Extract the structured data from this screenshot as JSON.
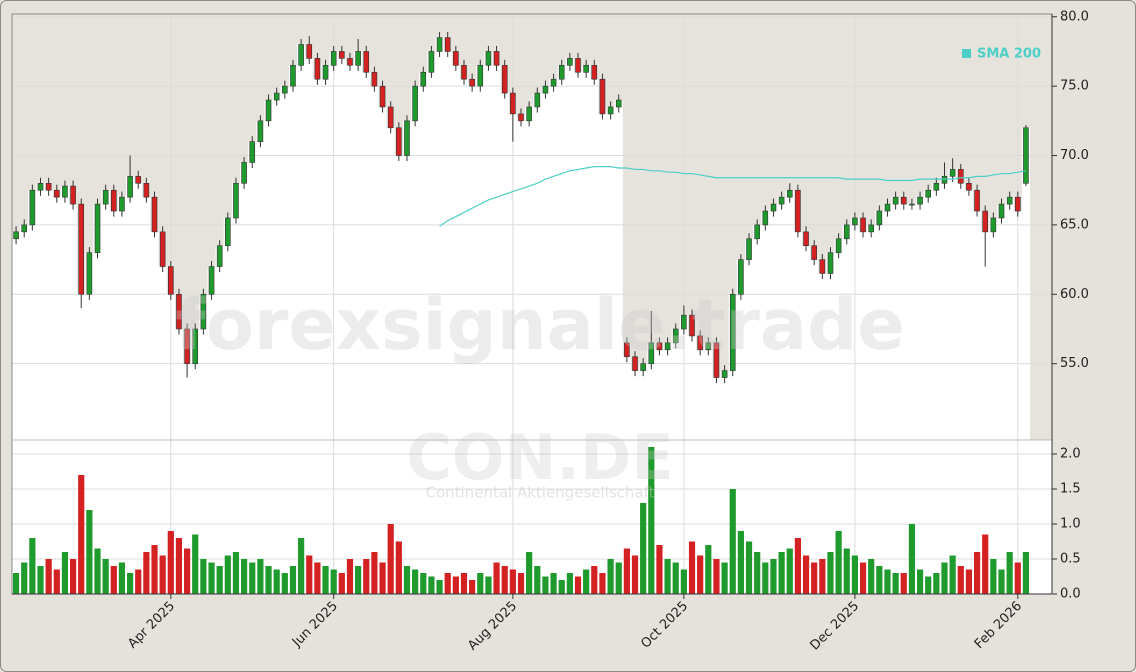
{
  "chart_data": {
    "type": "candlestick",
    "watermark": "forexsignale.trade",
    "symbol": "CON.DE",
    "company": "Continental Aktiengesellschaft",
    "categories": [
      null,
      null,
      null,
      null,
      null,
      null,
      null,
      null,
      null,
      null,
      null,
      null,
      null,
      null,
      null,
      null,
      null,
      null,
      null,
      "Apr 2025",
      null,
      null,
      null,
      null,
      null,
      null,
      null,
      null,
      null,
      null,
      null,
      null,
      null,
      null,
      null,
      null,
      null,
      null,
      null,
      "Jun 2025",
      null,
      null,
      null,
      null,
      null,
      null,
      null,
      null,
      null,
      null,
      null,
      null,
      null,
      null,
      null,
      null,
      null,
      null,
      null,
      null,
      null,
      "Aug 2025",
      null,
      null,
      null,
      null,
      null,
      null,
      null,
      null,
      null,
      null,
      null,
      null,
      null,
      null,
      null,
      null,
      null,
      null,
      null,
      null,
      "Oct 2025",
      null,
      null,
      null,
      null,
      null,
      null,
      null,
      null,
      null,
      null,
      null,
      null,
      null,
      null,
      null,
      null,
      null,
      null,
      null,
      null,
      "Dec 2025",
      null,
      null,
      null,
      null,
      null,
      null,
      null,
      null,
      null,
      null,
      null,
      null,
      null,
      null,
      null,
      null,
      null,
      null,
      null,
      "Feb 2026",
      null
    ],
    "open": [
      64.0,
      64.5,
      65.0,
      67.5,
      68.0,
      67.5,
      67.0,
      67.8,
      66.5,
      60.0,
      63.0,
      66.5,
      67.5,
      66.0,
      67.0,
      68.5,
      68.0,
      67.0,
      64.5,
      62.0,
      60.0,
      57.5,
      55.0,
      57.5,
      60.0,
      62.0,
      63.5,
      65.5,
      68.0,
      69.5,
      71.0,
      72.5,
      74.0,
      74.5,
      75.0,
      76.5,
      78.0,
      77.0,
      75.5,
      76.5,
      77.5,
      77.0,
      76.5,
      77.5,
      76.0,
      75.0,
      73.5,
      72.0,
      70.0,
      72.5,
      75.0,
      76.0,
      77.5,
      78.5,
      77.5,
      76.5,
      75.5,
      75.0,
      76.5,
      77.5,
      76.5,
      74.5,
      73.0,
      72.5,
      73.5,
      74.5,
      75.0,
      75.5,
      76.5,
      77.0,
      76.0,
      76.5,
      75.5,
      73.0,
      73.5,
      56.5,
      55.5,
      54.5,
      55.0,
      56.5,
      56.0,
      56.5,
      57.5,
      58.5,
      57.0,
      56.0,
      56.5,
      54.0,
      54.5,
      60.0,
      62.5,
      64.0,
      65.0,
      66.0,
      66.5,
      67.0,
      67.5,
      64.5,
      63.5,
      62.5,
      61.5,
      63.0,
      64.0,
      65.0,
      65.5,
      64.5,
      65.0,
      66.0,
      66.5,
      67.0,
      66.5,
      66.5,
      67.0,
      67.5,
      68.0,
      68.5,
      69.0,
      68.0,
      67.5,
      66.0,
      64.5,
      65.5,
      66.5,
      67.0,
      68.0
    ],
    "high": [
      64.9,
      65.4,
      67.9,
      68.4,
      68.4,
      67.9,
      68.2,
      68.2,
      66.9,
      63.4,
      66.9,
      67.9,
      67.9,
      67.4,
      70.0,
      68.9,
      68.4,
      67.4,
      64.9,
      62.4,
      60.4,
      57.9,
      57.9,
      60.4,
      62.4,
      63.9,
      65.9,
      68.4,
      69.9,
      71.4,
      72.9,
      74.4,
      74.9,
      75.4,
      76.9,
      78.4,
      78.6,
      77.4,
      76.9,
      77.9,
      77.9,
      77.4,
      78.4,
      77.9,
      76.4,
      75.4,
      73.9,
      72.4,
      72.9,
      75.4,
      76.4,
      77.9,
      78.9,
      78.9,
      77.9,
      76.9,
      75.9,
      76.9,
      77.9,
      77.9,
      76.9,
      74.9,
      73.4,
      73.9,
      74.9,
      75.4,
      75.9,
      76.9,
      77.4,
      77.4,
      76.9,
      76.9,
      75.9,
      73.9,
      74.4,
      56.9,
      55.9,
      55.4,
      58.8,
      56.9,
      56.9,
      57.9,
      59.2,
      58.9,
      57.4,
      56.9,
      56.9,
      54.9,
      60.4,
      62.9,
      64.4,
      65.4,
      66.4,
      66.9,
      67.4,
      68.0,
      67.9,
      64.9,
      63.9,
      62.9,
      63.4,
      64.4,
      65.4,
      65.9,
      65.9,
      65.4,
      66.4,
      66.9,
      67.4,
      67.4,
      66.9,
      67.4,
      67.9,
      68.4,
      69.5,
      69.8,
      69.4,
      68.4,
      67.9,
      66.4,
      65.9,
      66.9,
      67.4,
      67.4,
      72.2
    ],
    "low": [
      63.6,
      64.1,
      64.6,
      67.1,
      67.1,
      66.6,
      66.6,
      66.1,
      59.0,
      59.6,
      62.6,
      66.1,
      65.6,
      65.6,
      66.6,
      67.6,
      66.6,
      64.1,
      61.6,
      59.6,
      57.1,
      54.0,
      54.6,
      57.1,
      59.6,
      61.6,
      63.1,
      65.1,
      67.6,
      69.1,
      70.6,
      72.1,
      73.6,
      74.1,
      74.6,
      76.1,
      76.6,
      75.1,
      75.1,
      76.1,
      76.6,
      76.1,
      76.1,
      75.6,
      74.6,
      73.1,
      71.6,
      69.6,
      69.6,
      72.1,
      74.6,
      75.6,
      77.1,
      77.1,
      76.1,
      75.1,
      74.6,
      74.6,
      76.1,
      76.1,
      74.1,
      71.0,
      72.1,
      72.1,
      73.1,
      74.1,
      74.6,
      75.1,
      76.1,
      75.6,
      75.6,
      75.1,
      72.6,
      72.6,
      73.1,
      55.1,
      54.1,
      54.1,
      54.6,
      55.6,
      55.6,
      56.1,
      57.1,
      56.6,
      55.6,
      55.6,
      53.6,
      53.6,
      54.1,
      59.6,
      62.1,
      63.6,
      64.6,
      65.6,
      66.1,
      66.6,
      64.1,
      63.1,
      62.1,
      61.1,
      61.1,
      62.6,
      63.6,
      64.6,
      64.1,
      64.1,
      64.6,
      65.6,
      66.1,
      66.1,
      66.1,
      66.1,
      66.6,
      67.1,
      67.6,
      68.1,
      67.6,
      67.1,
      65.6,
      62.0,
      64.1,
      65.1,
      66.1,
      65.6,
      67.8
    ],
    "close": [
      64.5,
      65.0,
      67.5,
      68.0,
      67.5,
      67.0,
      67.8,
      66.5,
      60.0,
      63.0,
      66.5,
      67.5,
      66.0,
      67.0,
      68.5,
      68.0,
      67.0,
      64.5,
      62.0,
      60.0,
      57.5,
      55.0,
      57.5,
      60.0,
      62.0,
      63.5,
      65.5,
      68.0,
      69.5,
      71.0,
      72.5,
      74.0,
      74.5,
      75.0,
      76.5,
      78.0,
      77.0,
      75.5,
      76.5,
      77.5,
      77.0,
      76.5,
      77.5,
      76.0,
      75.0,
      73.5,
      72.0,
      70.0,
      72.5,
      75.0,
      76.0,
      77.5,
      78.5,
      77.5,
      76.5,
      75.5,
      75.0,
      76.5,
      77.5,
      76.5,
      74.5,
      73.0,
      72.5,
      73.5,
      74.5,
      75.0,
      75.5,
      76.5,
      77.0,
      76.0,
      76.5,
      75.5,
      73.0,
      73.5,
      74.0,
      55.5,
      54.5,
      55.0,
      56.5,
      56.0,
      56.5,
      57.5,
      58.5,
      57.0,
      56.0,
      56.5,
      54.0,
      54.5,
      60.0,
      62.5,
      64.0,
      65.0,
      66.0,
      66.5,
      67.0,
      67.5,
      64.5,
      63.5,
      62.5,
      61.5,
      63.0,
      64.0,
      65.0,
      65.5,
      64.5,
      65.0,
      66.0,
      66.5,
      67.0,
      66.5,
      66.5,
      67.0,
      67.5,
      68.0,
      68.5,
      69.0,
      68.0,
      67.5,
      66.0,
      64.5,
      65.5,
      66.5,
      67.0,
      66.0,
      72.0
    ],
    "volume": [
      0.3,
      0.45,
      0.8,
      0.4,
      0.5,
      0.35,
      0.6,
      0.5,
      1.7,
      1.2,
      0.65,
      0.5,
      0.4,
      0.45,
      0.3,
      0.35,
      0.6,
      0.7,
      0.55,
      0.9,
      0.8,
      0.65,
      0.85,
      0.5,
      0.45,
      0.4,
      0.55,
      0.6,
      0.5,
      0.45,
      0.5,
      0.4,
      0.35,
      0.3,
      0.4,
      0.8,
      0.55,
      0.45,
      0.4,
      0.35,
      0.3,
      0.5,
      0.4,
      0.5,
      0.6,
      0.45,
      1.0,
      0.75,
      0.4,
      0.35,
      0.3,
      0.25,
      0.2,
      0.3,
      0.25,
      0.3,
      0.2,
      0.3,
      0.25,
      0.45,
      0.4,
      0.35,
      0.3,
      0.6,
      0.4,
      0.25,
      0.3,
      0.2,
      0.3,
      0.25,
      0.35,
      0.4,
      0.3,
      0.5,
      0.45,
      0.65,
      0.55,
      1.3,
      2.1,
      0.7,
      0.5,
      0.45,
      0.35,
      0.75,
      0.55,
      0.7,
      0.5,
      0.45,
      1.5,
      0.9,
      0.75,
      0.6,
      0.45,
      0.5,
      0.6,
      0.65,
      0.8,
      0.55,
      0.45,
      0.5,
      0.6,
      0.9,
      0.65,
      0.55,
      0.45,
      0.5,
      0.4,
      0.35,
      0.3,
      0.3,
      1.0,
      0.35,
      0.25,
      0.3,
      0.45,
      0.55,
      0.4,
      0.35,
      0.6,
      0.85,
      0.5,
      0.35,
      0.6,
      0.45,
      0.6
    ],
    "sma": {
      "name": "SMA 200",
      "color": "#4ccfc6",
      "values": [
        null,
        null,
        null,
        null,
        null,
        null,
        null,
        null,
        null,
        null,
        null,
        null,
        null,
        null,
        null,
        null,
        null,
        null,
        null,
        null,
        null,
        null,
        null,
        null,
        null,
        null,
        null,
        null,
        null,
        null,
        null,
        null,
        null,
        null,
        null,
        null,
        null,
        null,
        null,
        null,
        null,
        null,
        null,
        null,
        null,
        null,
        null,
        null,
        null,
        null,
        null,
        null,
        64.9,
        65.3,
        65.6,
        65.9,
        66.2,
        66.5,
        66.8,
        67.0,
        67.2,
        67.4,
        67.6,
        67.8,
        68.0,
        68.3,
        68.5,
        68.7,
        68.9,
        69.0,
        69.1,
        69.2,
        69.2,
        69.2,
        69.1,
        69.1,
        69.0,
        69.0,
        68.9,
        68.9,
        68.8,
        68.8,
        68.7,
        68.7,
        68.6,
        68.5,
        68.4,
        68.4,
        68.4,
        68.4,
        68.4,
        68.4,
        68.4,
        68.4,
        68.4,
        68.4,
        68.4,
        68.4,
        68.4,
        68.4,
        68.4,
        68.4,
        68.3,
        68.3,
        68.3,
        68.3,
        68.3,
        68.2,
        68.2,
        68.2,
        68.2,
        68.3,
        68.3,
        68.3,
        68.3,
        68.3,
        68.4,
        68.4,
        68.5,
        68.5,
        68.6,
        68.7,
        68.7,
        68.8,
        68.9
      ]
    },
    "up_color": "#1f9a2c",
    "down_color": "#d42222",
    "ylim": [
      49.5,
      80.2
    ],
    "yticks": [
      {
        "value": 55,
        "label": "55.0"
      },
      {
        "value": 60,
        "label": "60.0"
      },
      {
        "value": 65,
        "label": "65.0"
      },
      {
        "value": 70,
        "label": "70.0"
      },
      {
        "value": 75,
        "label": "75.0"
      },
      {
        "value": 80,
        "label": "80.0"
      }
    ],
    "y2lim": [
      0,
      2.2
    ],
    "y2ticks": [
      {
        "value": 0,
        "label": "0.0"
      },
      {
        "value": 0.5,
        "label": "0.5"
      },
      {
        "value": 1,
        "label": "1.0"
      },
      {
        "value": 1.5,
        "label": "1.5"
      },
      {
        "value": 2,
        "label": "2.0"
      }
    ],
    "grid": true
  }
}
